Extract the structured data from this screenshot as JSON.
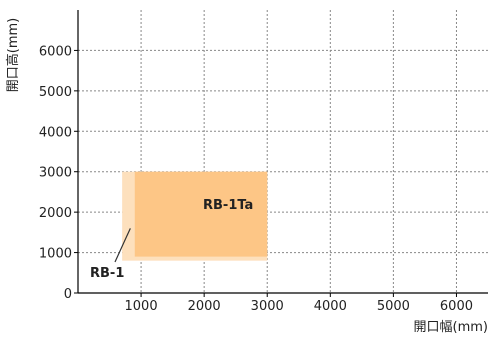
{
  "chart_data": {
    "type": "area",
    "title": "",
    "xlabel": "開口幅(mm)",
    "ylabel": "開口高(mm)",
    "xlim": [
      0,
      6500
    ],
    "ylim": [
      0,
      7000
    ],
    "x_ticks": [
      1000,
      2000,
      3000,
      4000,
      5000,
      6000
    ],
    "y_ticks": [
      0,
      1000,
      2000,
      3000,
      4000,
      5000,
      6000
    ],
    "grid": true,
    "regions": [
      {
        "name": "RB-1",
        "x_range": [
          700,
          3000
        ],
        "y_range": [
          800,
          3000
        ],
        "color": "#fde0bd"
      },
      {
        "name": "RB-1Ta",
        "x_range": [
          900,
          3000
        ],
        "y_range": [
          900,
          3000
        ],
        "color": "#fdc686"
      }
    ]
  }
}
